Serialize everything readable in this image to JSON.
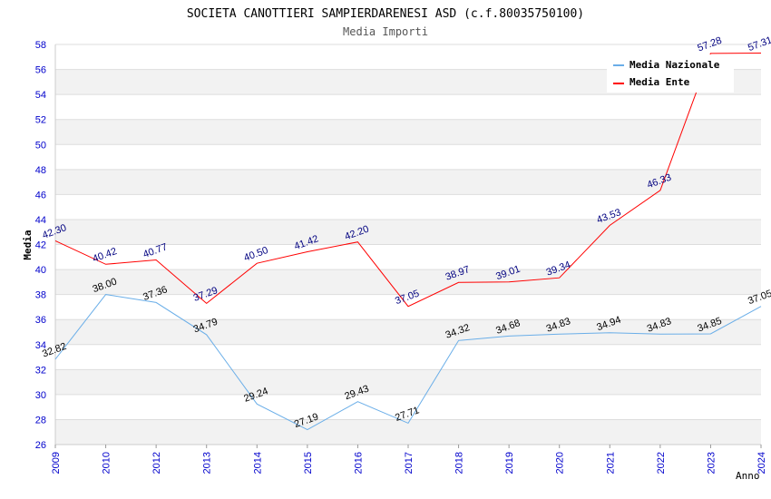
{
  "chart_data": {
    "type": "line",
    "title": "SOCIETA CANOTTIERI SAMPIERDARENESI ASD (c.f.80035750100)",
    "subtitle": "Media Importi",
    "ylabel": "Media",
    "xlabel": "Anno",
    "ylim": [
      26,
      58
    ],
    "y_ticks": [
      26,
      28,
      30,
      32,
      34,
      36,
      38,
      40,
      42,
      44,
      46,
      48,
      50,
      52,
      54,
      56,
      58
    ],
    "categories": [
      "2009",
      "2010",
      "2012",
      "2013",
      "2014",
      "2015",
      "2016",
      "2017",
      "2018",
      "2019",
      "2020",
      "2021",
      "2022",
      "2023",
      "2024"
    ],
    "grid": true,
    "legend_position": "top-right",
    "series": [
      {
        "name": "Media Nazionale",
        "color": "#6aaee8",
        "label_color": "#000000",
        "values": [
          32.82,
          38.0,
          37.36,
          34.79,
          29.24,
          27.19,
          29.43,
          27.71,
          34.32,
          34.68,
          34.83,
          34.94,
          34.83,
          34.85,
          37.05
        ],
        "labels": [
          "32.82",
          "38.00",
          "37.36",
          "34.79",
          "29.24",
          "27.19",
          "29.43",
          "27.71",
          "34.32",
          "34.68",
          "34.83",
          "34.94",
          "34.83",
          "34.85",
          "37.05"
        ]
      },
      {
        "name": "Media Ente",
        "color": "#ff0000",
        "label_color": "#000080",
        "values": [
          42.3,
          40.42,
          40.77,
          37.29,
          40.5,
          41.42,
          42.2,
          37.05,
          38.97,
          39.01,
          39.34,
          43.53,
          46.33,
          57.28,
          57.31
        ],
        "labels": [
          "42.30",
          "40.42",
          "40.77",
          "37.29",
          "40.50",
          "41.42",
          "42.20",
          "37.05",
          "38.97",
          "39.01",
          "39.34",
          "43.53",
          "46.33",
          "57.28",
          "57.31"
        ]
      }
    ]
  }
}
